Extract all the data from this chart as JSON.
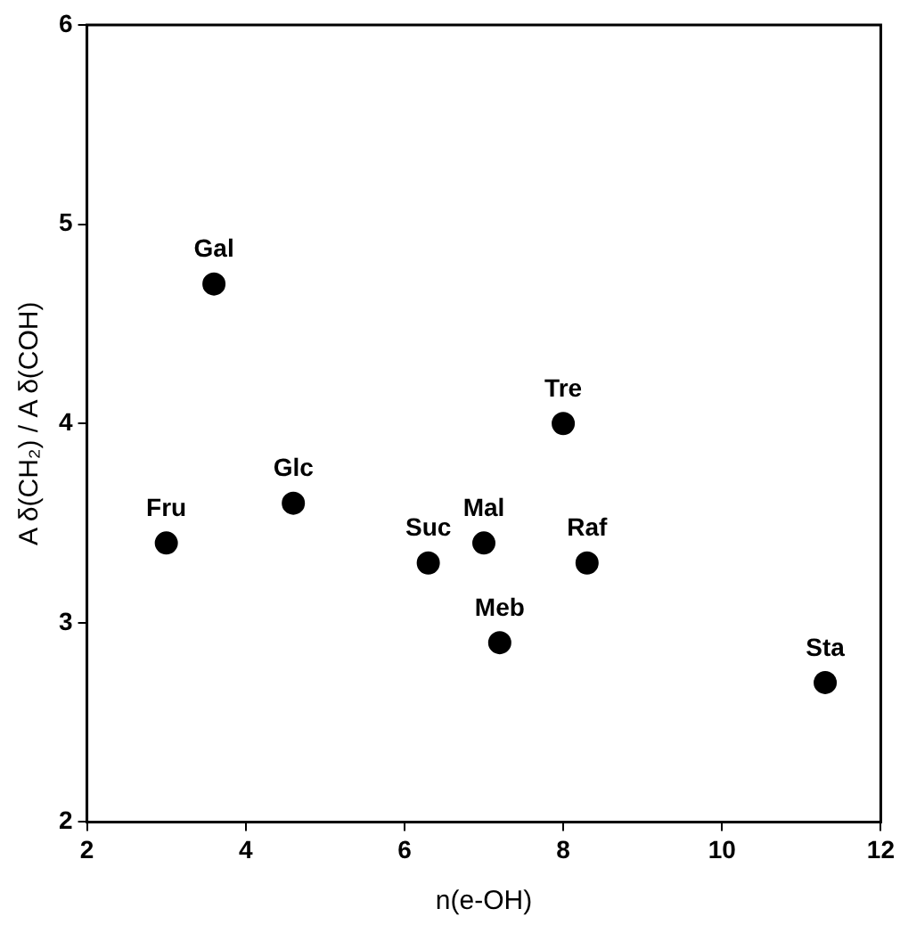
{
  "chart_data": {
    "type": "scatter",
    "xlabel": "n(e-OH)",
    "ylabel": "A δ(CH₂) / A δ(COH)",
    "x": [
      3,
      3.6,
      4.6,
      6.3,
      7,
      7.2,
      8,
      8.3,
      11.3
    ],
    "series": [
      {
        "color": "#000000",
        "values": [
          3.4,
          4.7,
          3.6,
          3.3,
          3.4,
          2.9,
          4.0,
          3.3,
          2.7
        ]
      }
    ],
    "annotations": [
      {
        "text": "Fru",
        "x": 3,
        "y": 3.4
      },
      {
        "text": "Gal",
        "x": 3.6,
        "y": 4.7
      },
      {
        "text": "Glc",
        "x": 4.6,
        "y": 3.6
      },
      {
        "text": "Suc",
        "x": 6.3,
        "y": 3.3
      },
      {
        "text": "Mal",
        "x": 7,
        "y": 3.4
      },
      {
        "text": "Meb",
        "x": 7.2,
        "y": 2.9
      },
      {
        "text": "Tre",
        "x": 8,
        "y": 4.0
      },
      {
        "text": "Raf",
        "x": 8.3,
        "y": 3.3
      },
      {
        "text": "Sta",
        "x": 11.3,
        "y": 2.7
      }
    ],
    "xlim": [
      2,
      12
    ],
    "xticks": [
      2,
      4,
      6,
      8,
      10,
      12
    ],
    "ylim": [
      2,
      6
    ],
    "yticks": [
      2,
      3,
      4,
      5,
      6
    ],
    "marker": "circle",
    "grid": false,
    "legend": false
  }
}
